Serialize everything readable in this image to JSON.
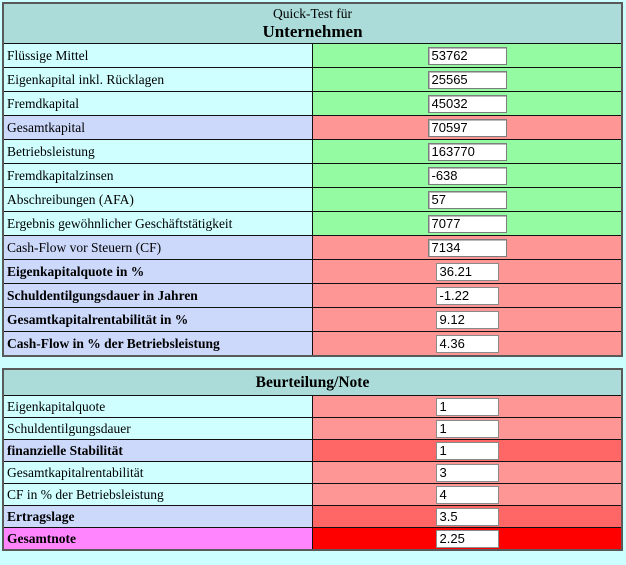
{
  "colors": {
    "page_bg": "#CCFFFF",
    "header_bg": "#ABDCD9",
    "label_cyan": "#CFFFFF",
    "label_lavender": "#CCD9FB",
    "label_magenta": "#FF85FF",
    "side_green": "#95FBA2",
    "side_salmon": "#FF9696",
    "side_coral": "#FF6666",
    "side_red": "#FF0000",
    "border_outer": "#595959",
    "border_inner": "#111111"
  },
  "quick_test": {
    "title_line1": "Quick-Test für",
    "title_line2": "Unternehmen",
    "rows": [
      {
        "label": "Flüssige Mittel",
        "value": "53762"
      },
      {
        "label": "Eigenkapital inkl. Rücklagen",
        "value": "25565"
      },
      {
        "label": "Fremdkapital",
        "value": "45032"
      },
      {
        "label": "Gesamtkapital",
        "value": "70597"
      },
      {
        "label": "Betriebsleistung",
        "value": "163770"
      },
      {
        "label": "Fremdkapitalzinsen",
        "value": "-638"
      },
      {
        "label": "Abschreibungen (AFA)",
        "value": "57"
      },
      {
        "label": "Ergebnis gewöhnlicher Geschäftstätigkeit",
        "value": "7077"
      },
      {
        "label": "Cash-Flow vor Steuern (CF)",
        "value": "7134"
      },
      {
        "label": "Eigenkapitalquote in %",
        "value": "36.21"
      },
      {
        "label": "Schuldentilgungsdauer in Jahren",
        "value": "-1.22"
      },
      {
        "label": "Gesamtkapitalrentabilität in %",
        "value": "9.12"
      },
      {
        "label": "Cash-Flow in % der Betriebsleistung",
        "value": "4.36"
      }
    ]
  },
  "rating": {
    "title": "Beurteilung/Note",
    "rows": [
      {
        "label": "Eigenkapitalquote",
        "value": "1"
      },
      {
        "label": "Schuldentilgungsdauer",
        "value": "1"
      },
      {
        "label": "finanzielle Stabilität",
        "value": "1"
      },
      {
        "label": "Gesamtkapitalrentabilität",
        "value": "3"
      },
      {
        "label": "CF in % der Betriebsleistung",
        "value": "4"
      },
      {
        "label": "Ertragslage",
        "value": "3.5"
      },
      {
        "label": "Gesamtnote",
        "value": "2.25"
      }
    ]
  }
}
